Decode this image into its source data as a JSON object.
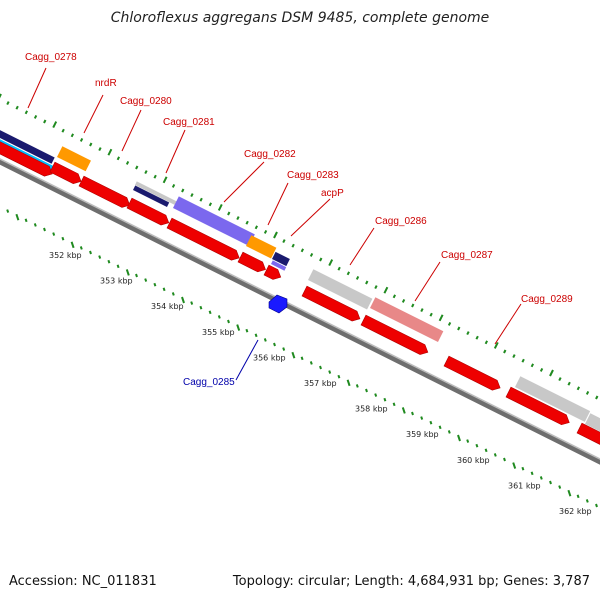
{
  "title": "Chloroflexus aggregans DSM 9485, complete genome",
  "footer": {
    "accession": "Accession: NC_011831",
    "stats": "Topology: circular; Length: 4,684,931 bp; Genes: 3,787"
  },
  "colors": {
    "label_red": "#cc0000",
    "label_blue": "#0000aa",
    "backbone": "#8f8f8f",
    "tick_green": "#1f8a1f",
    "cds_red": "#ee0000",
    "gene_gray": "#c8c8c8",
    "gene_pink": "#e88888",
    "gene_purple": "#7b68ee",
    "gene_navy": "#1a1a6e",
    "gene_orange": "#ff9900",
    "gene_cyan": "#00bfff",
    "gene_blue": "#1a1aff"
  },
  "tick_labels": [
    "352 kbp",
    "353 kbp",
    "354 kbp",
    "355 kbp",
    "356 kbp",
    "357 kbp",
    "358 kbp",
    "359 kbp",
    "360 kbp",
    "361 kbp",
    "362 kbp"
  ],
  "gene_labels": [
    {
      "text": "Cagg_0278",
      "color": "red"
    },
    {
      "text": "nrdR",
      "color": "red"
    },
    {
      "text": "Cagg_0280",
      "color": "red"
    },
    {
      "text": "Cagg_0281",
      "color": "red"
    },
    {
      "text": "Cagg_0282",
      "color": "red"
    },
    {
      "text": "Cagg_0283",
      "color": "red"
    },
    {
      "text": "acpP",
      "color": "red"
    },
    {
      "text": "Cagg_0286",
      "color": "red"
    },
    {
      "text": "Cagg_0287",
      "color": "red"
    },
    {
      "text": "Cagg_0289",
      "color": "red"
    },
    {
      "text": "Cagg_0285",
      "color": "blue"
    }
  ]
}
